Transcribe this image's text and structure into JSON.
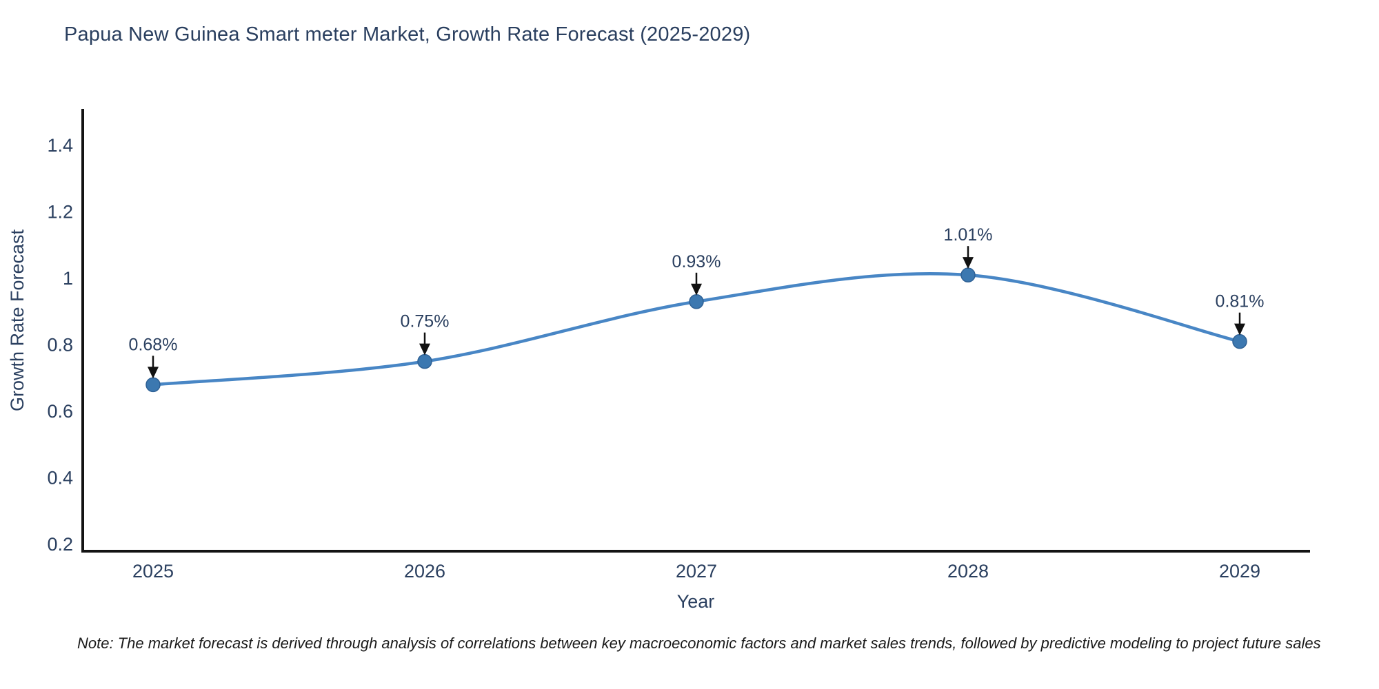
{
  "title": "Papua New Guinea Smart meter Market, Growth Rate Forecast (2025-2029)",
  "note": "Note: The market forecast is derived through analysis of correlations between key macroeconomic factors and market sales trends, followed by predictive modeling to project future sales",
  "chart_data": {
    "type": "line",
    "title": "Papua New Guinea Smart meter Market, Growth Rate Forecast (2025-2029)",
    "x": [
      2025,
      2026,
      2027,
      2028,
      2029
    ],
    "series": [
      {
        "name": "Growth Rate Forecast",
        "values": [
          0.68,
          0.75,
          0.93,
          1.01,
          0.81
        ]
      }
    ],
    "point_labels": [
      "0.68%",
      "0.75%",
      "0.93%",
      "1.01%",
      "0.81%"
    ],
    "xlabel": "Year",
    "ylabel": "Growth Rate Forecast",
    "xtick_labels": [
      "2025",
      "2026",
      "2027",
      "2028",
      "2029"
    ],
    "ytick_values": [
      0.2,
      0.4,
      0.6,
      0.8,
      1,
      1.2,
      1.4
    ],
    "ytick_labels": [
      "0.2",
      "0.4",
      "0.6",
      "0.8",
      "1",
      "1.2",
      "1.4"
    ],
    "ylim": [
      0.18,
      1.52
    ],
    "grid": false,
    "legend_position": "none",
    "line_shape": "spline",
    "marker": "circle"
  },
  "colors": {
    "line": "#4886c5",
    "marker_fill": "#3c78b0",
    "marker_edge": "#2f6195",
    "axis_line": "#141414",
    "text": "#2a3f5f",
    "annotation_arrow": "#111111",
    "note_text": "#1a1a1a",
    "background": "#ffffff"
  }
}
